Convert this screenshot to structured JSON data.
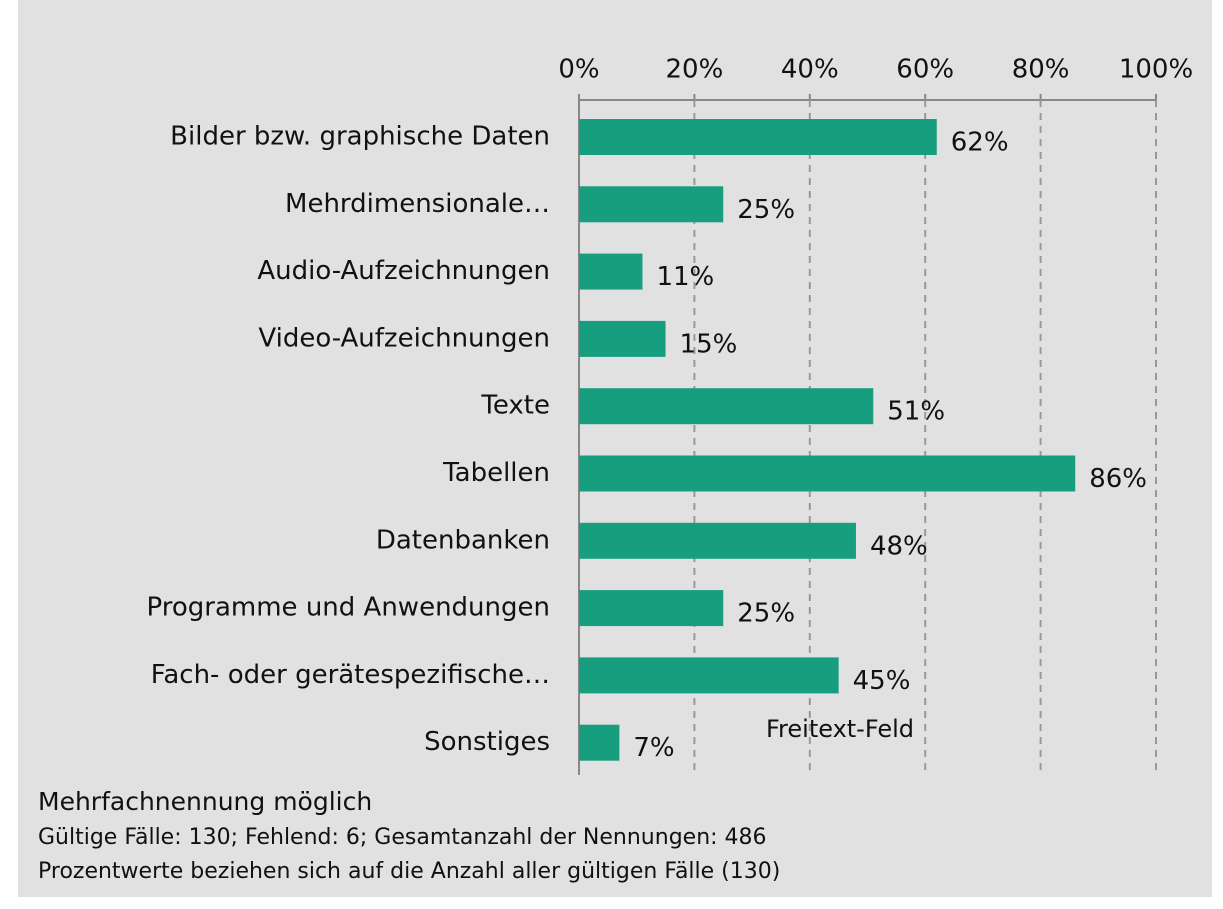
{
  "chart_data": {
    "type": "barh",
    "categories": [
      "Bilder bzw. graphische Daten",
      "Mehrdimensionale…",
      "Audio-Aufzeichnungen",
      "Video-Aufzeichnungen",
      "Texte",
      "Tabellen",
      "Datenbanken",
      "Programme und Anwendungen",
      "Fach- oder gerätespezifische…",
      "Sonstiges"
    ],
    "values": [
      62,
      25,
      11,
      15,
      51,
      86,
      48,
      25,
      45,
      7
    ],
    "value_labels": [
      "62%",
      "25%",
      "11%",
      "15%",
      "51%",
      "86%",
      "48%",
      "25%",
      "45%",
      "7%"
    ],
    "color": "#179e7e",
    "xlim": [
      0,
      100
    ],
    "xticks": [
      {
        "value": 0,
        "label": "0%"
      },
      {
        "value": 20,
        "label": "20%"
      },
      {
        "value": 40,
        "label": "40%"
      },
      {
        "value": 60,
        "label": "60%"
      },
      {
        "value": 80,
        "label": "80%"
      },
      {
        "value": 100,
        "label": "100%"
      }
    ],
    "grid": true,
    "annotation": "Freitext-Feld",
    "notes": [
      "Mehrfachnennung möglich",
      "Gültige Fälle: 130; Fehlend: 6; Gesamtanzahl der Nennungen: 486",
      "Prozentwerte beziehen sich auf die Anzahl aller gültigen Fälle (130)"
    ]
  }
}
